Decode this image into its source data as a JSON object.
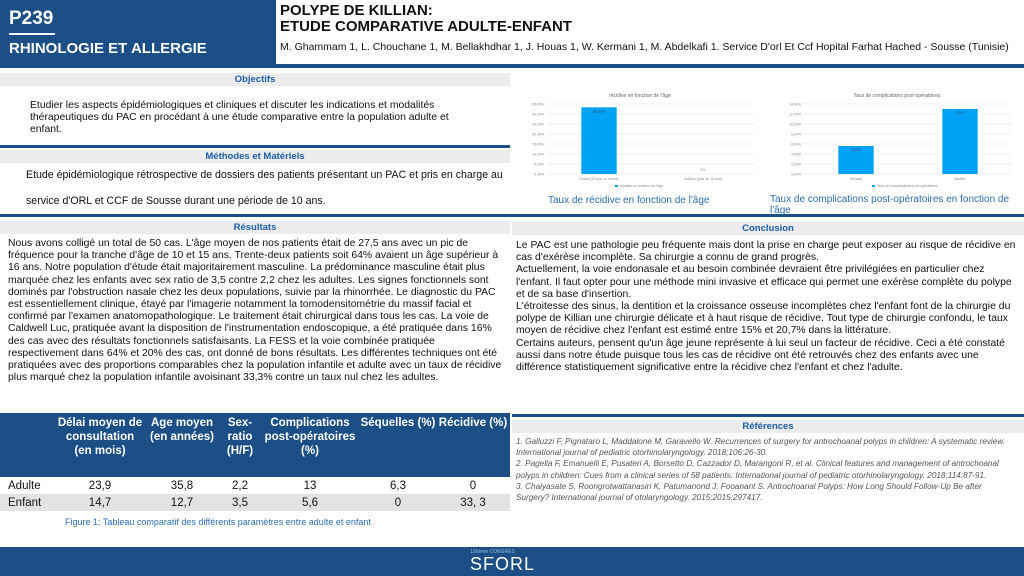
{
  "header": {
    "code": "P239",
    "topic": "RHINOLOGIE ET ALLERGIE",
    "title_line1": "POLYPE DE KILLIAN:",
    "title_line2": "ETUDE COMPARATIVE ADULTE-ENFANT",
    "authors": "M. Ghammam 1, L. Chouchane 1, M. Bellakhdhar 1, J. Houas 1, W. Kermani 1, M. Abdelkafi 1. Service D'orl Et Ccf Hopital Farhat Hached - Sousse (Tunisie)"
  },
  "objectifs": {
    "heading": "Objectifs",
    "text": "Etudier les aspects épidémiologiques et cliniques et discuter les indications et modalités thérapeutiques du PAC en procédant à une étude comparative entre la population adulte et enfant."
  },
  "methodes": {
    "heading": "Méthodes et Matériels",
    "line1": "Etude épidémiologique rétrospective de dossiers des patients présentant un PAC et pris en charge au",
    "line2": "service d'ORL et CCF de Sousse durant une période de 10 ans."
  },
  "resultats": {
    "heading": "Résultats",
    "text": "Nous avons colligé un total de 50 cas. L'âge moyen de nos patients était de 27,5 ans avec un pic de fréquence pour la tranche d'âge de 10 et 15 ans. Trente-deux patients soit 64% avaient un âge supérieur à 16 ans. Notre population d'étude était majoritairement masculine. La prédominance masculine était plus marquée chez les enfants avec sex ratio de 3,5 contre 2,2 chez les adultes. Les signes fonctionnels sont dominés par l'obstruction nasale chez les deux populations, suivie par la rhinorrhée. Le diagnostic du PAC est essentiellement clinique, étayé par l'imagerie notamment la tomodensitométrie du massif facial et confirmé par l'examen anatomopathologique. Le traitement était chirurgical dans tous les cas. La voie de Caldwell Luc, pratiquée avant la disposition de l'instrumentation endoscopique, a été pratiquée dans 16% des cas avec des résultats fonctionnels satisfaisants. La FESS et la voie combinée pratiquée respectivement dans 64% et 20% des cas, ont donné de bons résultats. Les différentes techniques ont été pratiquées avec des proportions comparables chez la population infantile et adulte avec un taux de récidive plus marqué chez la population infantile avoisinant 33,3% contre un taux nul chez les adultes."
  },
  "table": {
    "headers": [
      "",
      "Délai moyen de consultation (en mois)",
      "Age moyen (en années)",
      "Sex-ratio (H/F)",
      "Complications post-opératoires (%)",
      "Séquelles (%)",
      "Récidive (%)"
    ],
    "rows": [
      [
        "Adulte",
        "23,9",
        "35,8",
        "2,2",
        "13",
        "6,3",
        "0"
      ],
      [
        "Enfant",
        "14,7",
        "12,7",
        "3,5",
        "5,6",
        "0",
        "33, 3"
      ]
    ],
    "caption": "Figure 1: Tableau comparatif des différents paramètres entre adulte et enfant"
  },
  "chart_data": [
    {
      "type": "bar",
      "title": "récidive en fonction de l'âge",
      "categories": [
        "Enfant (10 ans ou moins)",
        "Adultes (plus de 16 ans)"
      ],
      "series": [
        {
          "name": "récidive en fonction de l'âge",
          "values": [
            33.33,
            0
          ]
        }
      ],
      "data_labels": [
        "33,33%",
        "0%"
      ],
      "ylim": [
        0,
        35
      ],
      "yticks": [
        "0,00%",
        "5,00%",
        "10,00%",
        "15,00%",
        "20,00%",
        "25,00%",
        "30,00%",
        "35,00%"
      ],
      "grid": true,
      "legend": "bottom",
      "color": "#00a2f5",
      "caption": "Taux de récidive en fonction de l'âge"
    },
    {
      "type": "bar",
      "title": "Taux de complications post-opératoires",
      "categories": [
        "Enfants",
        "Adultes"
      ],
      "series": [
        {
          "name": "Taux de complications post-opératoires",
          "values": [
            5.6,
            13
          ]
        }
      ],
      "data_labels": [
        "5,60%",
        "13%"
      ],
      "ylim": [
        0,
        14
      ],
      "yticks": [
        "0,00%",
        "2,00%",
        "4,00%",
        "6,00%",
        "8,00%",
        "10,00%",
        "12,00%",
        "14,00%"
      ],
      "grid": true,
      "legend": "bottom",
      "color": "#00a2f5",
      "caption": "Taux de complications post-opératoires en fonction de l'âge"
    }
  ],
  "conclusion": {
    "heading": "Conclusion",
    "text": "Le PAC est une pathologie peu fréquente mais dont la prise en charge peut exposer au risque de récidive en cas d'exérèse incomplète. Sa chirurgie a connu de grand progrès.\nActuellement, la voie endonasale et au besoin combinée devraient être privilégiées en particulier chez l'enfant. Il faut opter pour une méthode mini invasive et efficace qui permet une exérèse complète du polype et de sa base d'insertion.\nL'étroitesse des sinus, la dentition et la croissance osseuse incomplètes chez l'enfant font de la chirurgie du polype de Killian une chirurgie délicate et à haut risque de récidive. Tout type de chirurgie confondu, le taux moyen de récidive chez l'enfant est estimé entre 15% et 20,7% dans la littérature.\nCertains auteurs, pensent qu'un âge jeune représente à lui seul un facteur de récidive. Ceci a été constaté aussi dans notre étude puisque tous les cas de récidive ont été retrouvés chez des enfants avec une différence statistiquement significative entre la récidive chez l'enfant et chez l'adulte."
  },
  "references": {
    "heading": "Références",
    "items": [
      "1. Galluzzi F, Pignataro L, Maddalone M, Garavello W. Recurrences of surgery for antrochoanal polyps in children: A systematic review. International journal of pediatric otorhinolaryngology. 2018;106:26-30.",
      "2. Pagella F, Emanuelli E, Pusateri A, Borsetto D, Cazzador D, Marangoni R, et al. Clinical features and management of antrochoanal polyps in children: Cues from a clinical series of 58 patients. International journal of pediatric otorhinolaryngology. 2018;114:87-91.",
      "3. Chaiyasate S, Roongrotwattanasiri K, Patumanond J, Fooanant S. Antrochoanal Polyps: How Long Should Follow-Up Be after Surgery? International journal of otolaryngology. 2015;2015:297417."
    ]
  },
  "footer": {
    "logo": "SFORL",
    "logo_sub": "126ème CONGRÈS"
  }
}
